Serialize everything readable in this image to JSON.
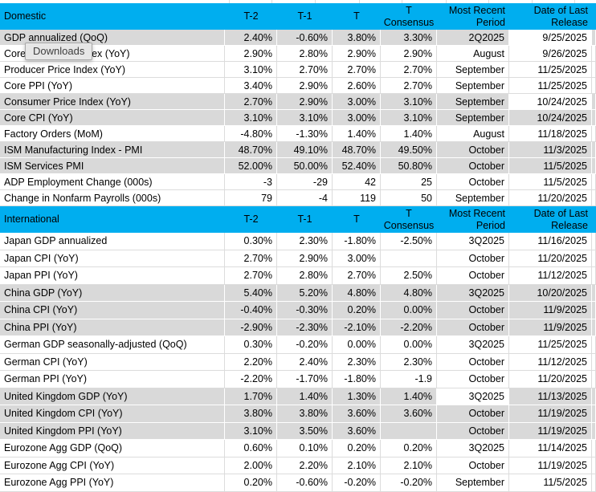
{
  "tooltip": {
    "label": "Downloads"
  },
  "colors": {
    "section_header_bg": "#00AEEF",
    "band_gray": "#D9D9D9",
    "grid_line": "#DCDCDC",
    "text": "#000000"
  },
  "table": {
    "columns": {
      "t2": "T-2",
      "t1": "T-1",
      "t": "T",
      "consensus": "T Consensus",
      "period": "Most Recent Period",
      "date": "Date of Last Release"
    },
    "sections": [
      {
        "title": "Domestic",
        "rows": [
          {
            "label": "GDP annualized (QoQ)",
            "t2": "2.40%",
            "t1": "-0.60%",
            "t": "3.80%",
            "consensus": "3.30%",
            "period": "2Q2025",
            "date": "9/25/2025",
            "shaded": true,
            "date_unshaded": true
          },
          {
            "label": "Core PCE Price Index (YoY)",
            "t2": "2.90%",
            "t1": "2.80%",
            "t": "2.90%",
            "consensus": "2.90%",
            "period": "August",
            "date": "9/26/2025",
            "shaded": false
          },
          {
            "label": "Producer Price Index (YoY)",
            "t2": "3.10%",
            "t1": "2.70%",
            "t": "2.70%",
            "consensus": "2.70%",
            "period": "September",
            "date": "11/25/2025",
            "shaded": false
          },
          {
            "label": "Core PPI (YoY)",
            "t2": "3.40%",
            "t1": "2.90%",
            "t": "2.60%",
            "consensus": "2.70%",
            "period": "September",
            "date": "11/25/2025",
            "shaded": false
          },
          {
            "label": "Consumer Price Index (YoY)",
            "t2": "2.70%",
            "t1": "2.90%",
            "t": "3.00%",
            "consensus": "3.10%",
            "period": "September",
            "date": "10/24/2025",
            "shaded": true,
            "date_unshaded": true
          },
          {
            "label": "Core CPI  (YoY)",
            "t2": "3.10%",
            "t1": "3.10%",
            "t": "3.00%",
            "consensus": "3.10%",
            "period": "September",
            "date": "10/24/2025",
            "shaded": true
          },
          {
            "label": "Factory Orders (MoM)",
            "t2": "-4.80%",
            "t1": "-1.30%",
            "t": "1.40%",
            "consensus": "1.40%",
            "period": "August",
            "date": "11/18/2025",
            "shaded": false
          },
          {
            "label": "ISM Manufacturing Index - PMI",
            "t2": "48.70%",
            "t1": "49.10%",
            "t": "48.70%",
            "consensus": "49.50%",
            "period": "October",
            "date": "11/3/2025",
            "shaded": true
          },
          {
            "label": "ISM Services PMI",
            "t2": "52.00%",
            "t1": "50.00%",
            "t": "52.40%",
            "consensus": "50.80%",
            "period": "October",
            "date": "11/5/2025",
            "shaded": true
          },
          {
            "label": "ADP Employment Change (000s)",
            "t2": "-3",
            "t1": "-29",
            "t": "42",
            "consensus": "25",
            "period": "October",
            "date": "11/5/2025",
            "shaded": false
          },
          {
            "label": "Change in Nonfarm Payrolls (000s)",
            "t2": "79",
            "t1": "-4",
            "t": "119",
            "consensus": "50",
            "period": "September",
            "date": "11/20/2025",
            "shaded": false
          }
        ]
      },
      {
        "title": "International",
        "rows": [
          {
            "label": "Japan GDP annualized",
            "t2": "0.30%",
            "t1": "2.30%",
            "t": "-1.80%",
            "consensus": "-2.50%",
            "period": "3Q2025",
            "date": "11/16/2025",
            "shaded": false
          },
          {
            "label": "Japan CPI (YoY)",
            "t2": "2.70%",
            "t1": "2.90%",
            "t": "3.00%",
            "consensus": "",
            "period": "October",
            "date": "11/20/2025",
            "shaded": false
          },
          {
            "label": "Japan PPI (YoY)",
            "t2": "2.70%",
            "t1": "2.80%",
            "t": "2.70%",
            "consensus": "2.50%",
            "period": "October",
            "date": "11/12/2025",
            "shaded": false
          },
          {
            "label": "China GDP (YoY)",
            "t2": "5.40%",
            "t1": "5.20%",
            "t": "4.80%",
            "consensus": "4.80%",
            "period": "3Q2025",
            "date": "10/20/2025",
            "shaded": true
          },
          {
            "label": "China CPI (YoY)",
            "t2": "-0.40%",
            "t1": "-0.30%",
            "t": "0.20%",
            "consensus": "0.00%",
            "period": "October",
            "date": "11/9/2025",
            "shaded": true
          },
          {
            "label": "China PPI (YoY)",
            "t2": "-2.90%",
            "t1": "-2.30%",
            "t": "-2.10%",
            "consensus": "-2.20%",
            "period": "October",
            "date": "11/9/2025",
            "shaded": true
          },
          {
            "label": "German GDP seasonally-adjusted (QoQ)",
            "t2": "0.30%",
            "t1": "-0.20%",
            "t": "0.00%",
            "consensus": "0.00%",
            "period": "3Q2025",
            "date": "11/25/2025",
            "shaded": false
          },
          {
            "label": "German CPI (YoY)",
            "t2": "2.20%",
            "t1": "2.40%",
            "t": "2.30%",
            "consensus": "2.30%",
            "period": "October",
            "date": "11/12/2025",
            "shaded": false
          },
          {
            "label": "German PPI (YoY)",
            "t2": "-2.20%",
            "t1": "-1.70%",
            "t": "-1.80%",
            "consensus": "-1.9",
            "period": "October",
            "date": "11/20/2025",
            "shaded": false
          },
          {
            "label": "United Kingdom GDP (YoY)",
            "t2": "1.70%",
            "t1": "1.40%",
            "t": "1.30%",
            "consensus": "1.40%",
            "period": "3Q2025",
            "date": "11/13/2025",
            "shaded": true,
            "period_unshaded": true
          },
          {
            "label": "United Kingdom CPI (YoY)",
            "t2": "3.80%",
            "t1": "3.80%",
            "t": "3.60%",
            "consensus": "3.60%",
            "period": "October",
            "date": "11/19/2025",
            "shaded": true
          },
          {
            "label": "United Kingdom  PPI (YoY)",
            "t2": "3.10%",
            "t1": "3.50%",
            "t": "3.60%",
            "consensus": "",
            "period": "October",
            "date": "11/19/2025",
            "shaded": true
          },
          {
            "label": "Eurozone Agg GDP (QoQ)",
            "t2": "0.60%",
            "t1": "0.10%",
            "t": "0.20%",
            "consensus": "0.20%",
            "period": "3Q2025",
            "date": "11/14/2025",
            "shaded": false
          },
          {
            "label": "Eurozone Agg CPI (YoY)",
            "t2": "2.00%",
            "t1": "2.20%",
            "t": "2.10%",
            "consensus": "2.10%",
            "period": "October",
            "date": "11/19/2025",
            "shaded": false
          },
          {
            "label": "Eurozone Agg PPI (YoY)",
            "t2": "0.20%",
            "t1": "-0.60%",
            "t": "-0.20%",
            "consensus": "-0.20%",
            "period": "September",
            "date": "11/5/2025",
            "shaded": false
          }
        ]
      }
    ]
  }
}
